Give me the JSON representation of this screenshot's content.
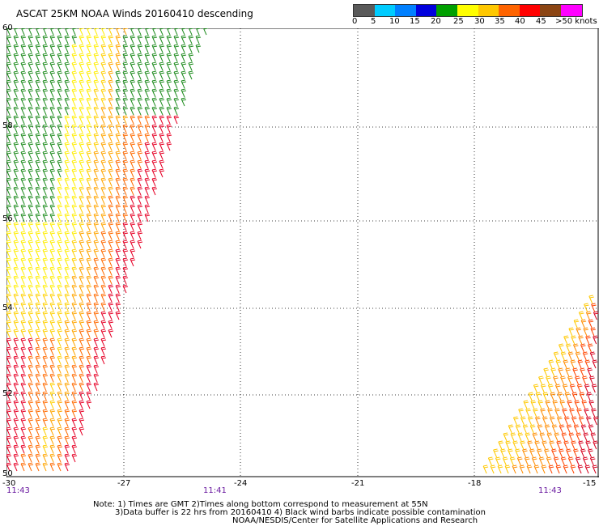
{
  "title": "ASCAT 25KM NOAA Winds 20160410 descending",
  "legend": {
    "labels": [
      "0",
      "5",
      "10",
      "15",
      "20",
      "25",
      "30",
      "35",
      "40",
      "45",
      ">50 knots"
    ],
    "colors": [
      "#5a5a5a",
      "#000000",
      "#00c8ff",
      "#0064ff",
      "#0000c8",
      "#00a000",
      "#006400",
      "#ffff00",
      "#ffc800",
      "#ff9600",
      "#ff6400",
      "#ff0000",
      "#c80000",
      "#a0522d",
      "#5a3014",
      "#ff00ff",
      "#c800ff",
      "#7800c8"
    ]
  },
  "axes": {
    "lon_labels": [
      "-30",
      "-27",
      "-24",
      "-21",
      "-18",
      "-15"
    ],
    "lat_labels": [
      "60",
      "58",
      "56",
      "54",
      "52",
      "50"
    ],
    "lon_range": [
      -30,
      -15
    ],
    "lat_range": [
      50,
      60
    ],
    "grid": true
  },
  "times": [
    "11:43",
    "11:41",
    "11:43"
  ],
  "notes": [
    "Note: 1) Times are GMT 2)Times along bottom correspond to measurement at 55N",
    "3)Data buffer is 22 hrs from 20160410 4) Black wind barbs indicate possible contamination",
    "NOAA/NESDIS/Center for Satellite Applications and Research"
  ],
  "swaths": [
    {
      "name": "west swath",
      "dominant_colors": [
        "#008000",
        "#ffff00",
        "#ffc800",
        "#ff8c00",
        "#ff0000"
      ]
    },
    {
      "name": "east swath",
      "dominant_colors": [
        "#ffc800",
        "#ff8c00",
        "#ff0000",
        "#cc0000"
      ]
    }
  ]
}
